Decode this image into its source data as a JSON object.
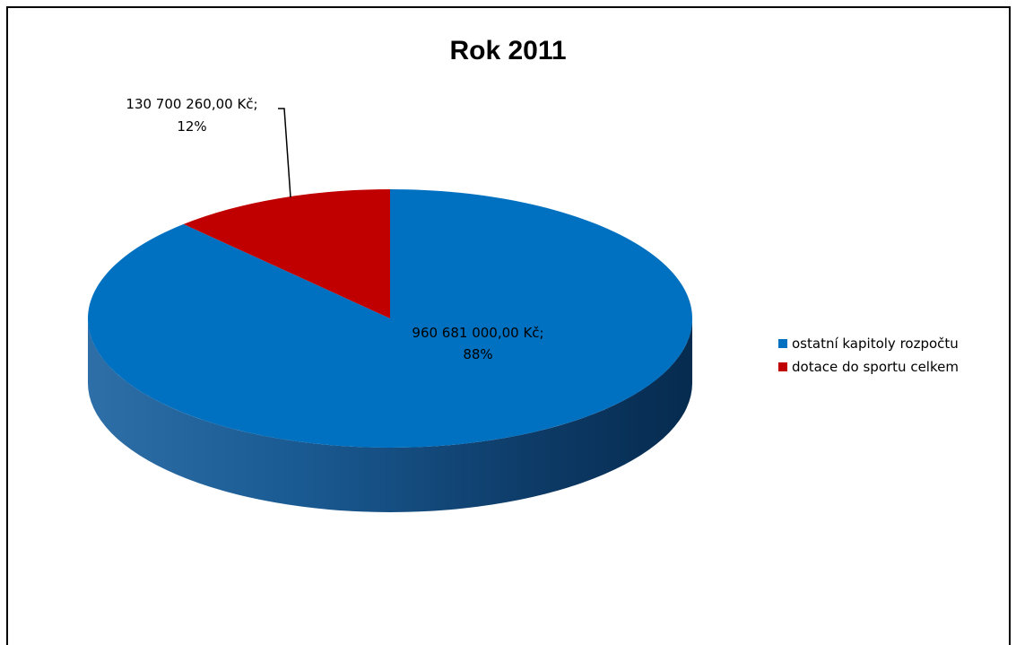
{
  "chart_data": {
    "type": "pie",
    "title": "Rok 2011",
    "slices": [
      {
        "name": "ostatní kapitoly rozpočtu",
        "value": 960681000.0,
        "percent": 88,
        "label_value": "960 681 000,00 Kč;",
        "label_percent": "88%",
        "color": "#0070C0"
      },
      {
        "name": "dotace do sportu celkem",
        "value": 130700260.0,
        "percent": 12,
        "label_value": "130 700 260,00 Kč;",
        "label_percent": "12%",
        "color": "#C00000"
      }
    ],
    "legend_position": "right",
    "three_d": true
  }
}
